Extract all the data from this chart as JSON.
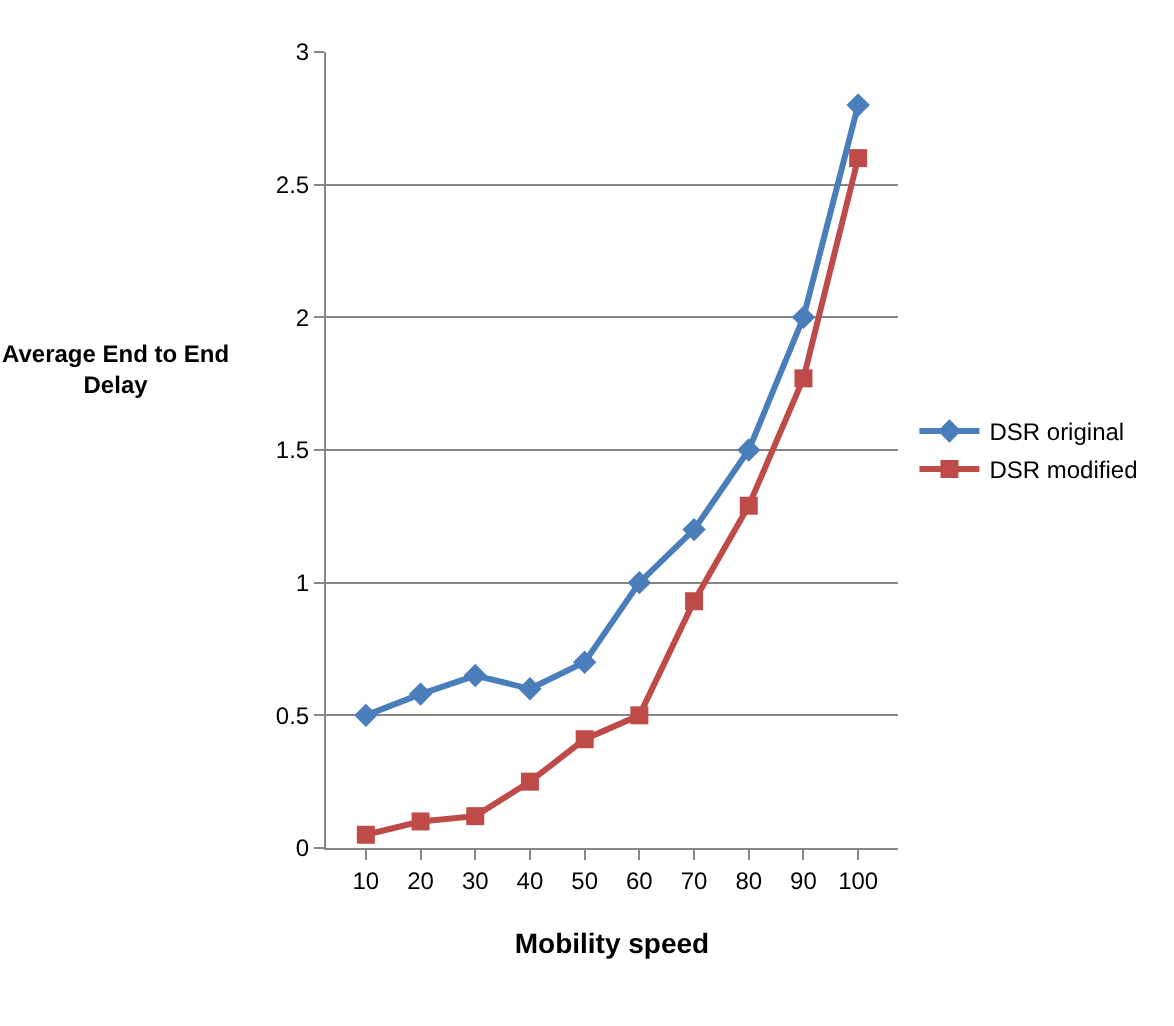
{
  "chart_data": {
    "type": "line",
    "xlabel": "Mobility speed",
    "ylabel": "Average End to End Delay",
    "categories": [
      "10",
      "20",
      "30",
      "40",
      "50",
      "60",
      "70",
      "80",
      "90",
      "100"
    ],
    "series": [
      {
        "name": "DSR original",
        "color": "#4a7ebb",
        "marker": "diamond",
        "values": [
          0.5,
          0.58,
          0.65,
          0.6,
          0.7,
          1.0,
          1.2,
          1.5,
          2.0,
          2.8
        ]
      },
      {
        "name": "DSR modified",
        "color": "#be4b48",
        "marker": "square",
        "values": [
          0.05,
          0.1,
          0.12,
          0.25,
          0.41,
          0.5,
          0.93,
          1.29,
          1.77,
          2.6
        ]
      }
    ],
    "ylim": [
      0,
      3
    ],
    "yticks": [
      0,
      0.5,
      1,
      1.5,
      2,
      2.5,
      3
    ],
    "grid": "y",
    "legend": "right",
    "line_style": "solid"
  }
}
